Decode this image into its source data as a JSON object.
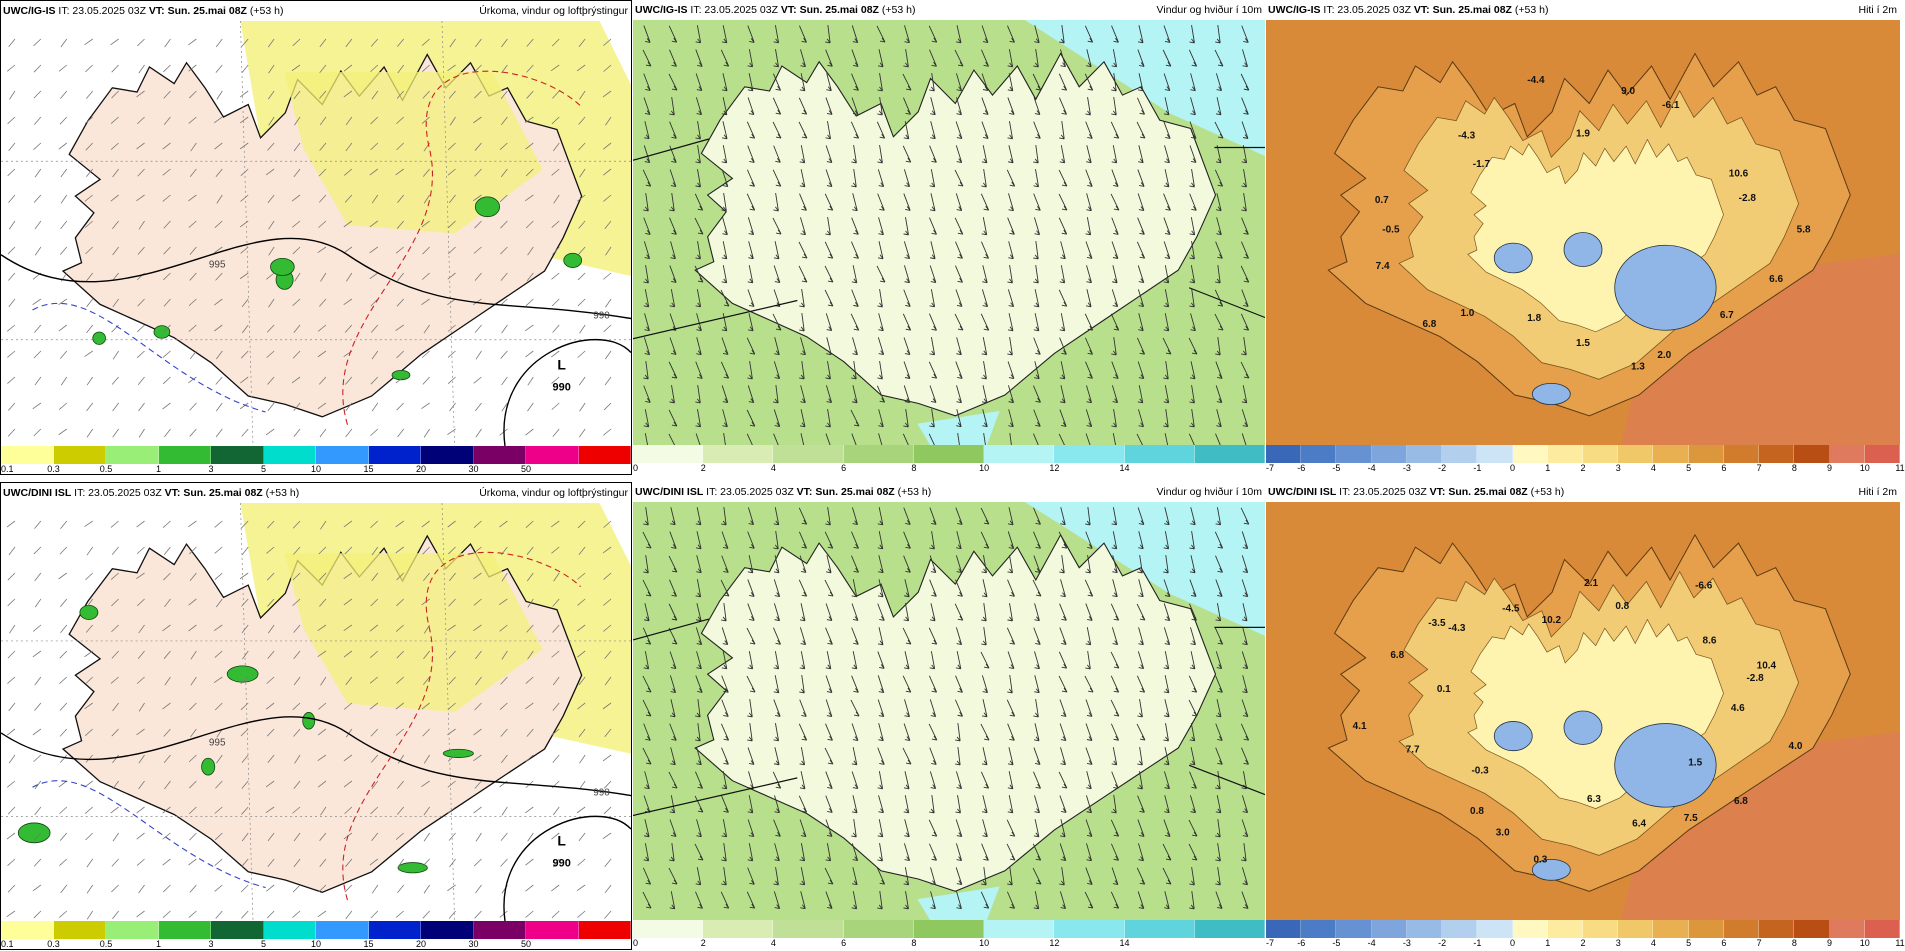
{
  "panels": [
    {
      "id": "igis-precip",
      "run": "UWC/IG-IS",
      "it": "IT: 23.05.2025 03Z",
      "vt_label": "VT:",
      "vt": "Sun. 25.mai 08Z",
      "lead": "(+53 h)",
      "title": "Úrkoma, vindur og loftþrýstingur",
      "legend": "precip",
      "low": {
        "letter": "L",
        "value": "990"
      },
      "isobars": [
        "990",
        "995"
      ],
      "labels": []
    },
    {
      "id": "igis-wind",
      "run": "UWC/IG-IS",
      "it": "IT: 23.05.2025 03Z",
      "vt_label": "VT:",
      "vt": "Sun. 25.mai 08Z",
      "lead": "(+53 h)",
      "title": "Vindur og hviður í 10m",
      "legend": "wind",
      "labels": []
    },
    {
      "id": "igis-temp",
      "run": "UWC/IG-IS",
      "it": "IT: 23.05.2025 03Z",
      "vt_label": "VT:",
      "vt": "Sun. 25.mai 08Z",
      "lead": "(+53 h)",
      "title": "Hiti í 2m",
      "legend": "temp",
      "labels": [
        "5.8",
        "6.6",
        "6.7",
        "2.0",
        "1.3",
        "1.5",
        "1.8",
        "1.0",
        "6.8",
        "7.4",
        "-0.5",
        "0.7",
        "-1.7",
        "-4.3",
        "-4.4",
        "1.9",
        "9.0",
        "-6.1",
        "10.6",
        "-2.8"
      ]
    },
    {
      "id": "dini-precip",
      "run": "UWC/DINI ISL",
      "it": "IT: 23.05.2025 03Z",
      "vt_label": "VT:",
      "vt": "Sun. 25.mai 08Z",
      "lead": "(+53 h)",
      "title": "Úrkoma, vindur og loftþrýstingur",
      "legend": "precip",
      "low": {
        "letter": "L",
        "value": "990"
      },
      "isobars": [
        "990",
        "995"
      ],
      "labels": []
    },
    {
      "id": "dini-wind",
      "run": "UWC/DINI ISL",
      "it": "IT: 23.05.2025 03Z",
      "vt_label": "VT:",
      "vt": "Sun. 25.mai 08Z",
      "lead": "(+53 h)",
      "title": "Vindur og hviður í 10m",
      "legend": "wind",
      "labels": []
    },
    {
      "id": "dini-temp",
      "run": "UWC/DINI ISL",
      "it": "IT: 23.05.2025 03Z",
      "vt_label": "VT:",
      "vt": "Sun. 25.mai 08Z",
      "lead": "(+53 h)",
      "title": "Hiti í 2m",
      "legend": "temp",
      "labels": [
        "4.6",
        "4.0",
        "1.5",
        "6.8",
        "7.5",
        "6.4",
        "6.3",
        "0.3",
        "3.0",
        "0.8",
        "-0.3",
        "7.7",
        "4.1",
        "0.1",
        "6.8",
        "-3.5",
        "-4.3",
        "-4.5",
        "10.2",
        "2.1",
        "0.8",
        "-6.6",
        "8.6",
        "10.4",
        "-2.8"
      ]
    }
  ],
  "legends": {
    "precip": {
      "colors": [
        "#ffff99",
        "#cccc00",
        "#99ee77",
        "#33bb33",
        "#116633",
        "#00ddcc",
        "#3399ff",
        "#0022cc",
        "#000077",
        "#7a0066",
        "#ee0088",
        "#ee0000"
      ],
      "ticks": [
        "0.1",
        "0.3",
        "0.5",
        "1",
        "3",
        "5",
        "10",
        "15",
        "20",
        "30",
        "50"
      ]
    },
    "wind": {
      "colors": [
        "#f4fbe4",
        "#d8ecb4",
        "#c0e098",
        "#a8d47c",
        "#90c860",
        "#b4f4f4",
        "#88e8ee",
        "#60d4dc",
        "#40bcc4"
      ],
      "ticks": [
        "0",
        "2",
        "4",
        "6",
        "8",
        "10",
        "12",
        "14"
      ]
    },
    "temp": {
      "colors": [
        "#3a68b8",
        "#4d7cc6",
        "#6691d2",
        "#7fa6dc",
        "#98bbe6",
        "#b2d0ee",
        "#cce4f6",
        "#fff8c0",
        "#fdeca0",
        "#f8dc84",
        "#f0c868",
        "#e8b050",
        "#dc963c",
        "#d07c2c",
        "#c4641e",
        "#b84e14",
        "#e07a5e",
        "#dc6050"
      ],
      "ticks": [
        "-7",
        "-6",
        "-5",
        "-4",
        "-3",
        "-2",
        "-1",
        "0",
        "1",
        "2",
        "3",
        "4",
        "5",
        "6",
        "7",
        "8",
        "9",
        "10",
        "11"
      ]
    }
  },
  "map_colors": {
    "sea_precip": "#ffffff",
    "land_precip": "#fbe7da",
    "precip_light": "#f4f07a",
    "precip_green": "#33bb33",
    "wind_bg": "#b8e08c",
    "wind_light": "#f2f9dc",
    "wind_cyan": "#b4f4f4",
    "temp_bg": "#d88a38",
    "temp_land": "#f2cc74",
    "temp_cold": "#8fb6e6"
  }
}
